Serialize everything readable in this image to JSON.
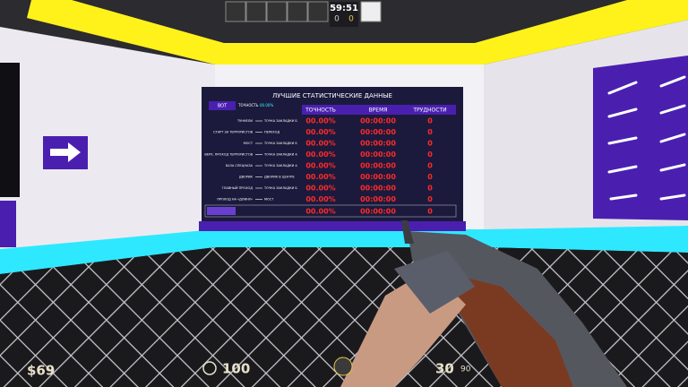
{
  "hud": {
    "timer": "59:51",
    "score_ct": "0",
    "score_t": "0",
    "money": "$69",
    "health": "100",
    "ammo": "30",
    "reserve": "90"
  },
  "board": {
    "title": "ЛУЧШИЕ СТАТИСТИЧЕСКИЕ ДАННЫЕ",
    "mode": "BOT",
    "accuracy_label": "ТОЧНОСТЬ",
    "accuracy": "00.00%",
    "headers": [
      "ТОЧНОСТЬ",
      "ВРЕМЯ",
      "ТРУДНОСТИ"
    ],
    "rows": [
      {
        "from": "ТУННЕЛИ",
        "to": "ТОЧКА ЗАКЛАДКИ Б",
        "accuracy": "00.00%",
        "time": "00:00:00",
        "difficulty": "0"
      },
      {
        "from": "СТАРТ ЗА ТЕРРОРИСТОВ",
        "to": "ПЕРЕХОД",
        "accuracy": "00.00%",
        "time": "00:00:00",
        "difficulty": "0"
      },
      {
        "from": "МОСТ",
        "to": "ТОЧКА ЗАКЛАДКИ Б",
        "accuracy": "00.00%",
        "time": "00:00:00",
        "difficulty": "0"
      },
      {
        "from": "ВЕРХ. ПРОХОД ТЕРРОРИСТОВ",
        "to": "ТОЧКА ЗАКЛАДКИ А",
        "accuracy": "00.00%",
        "time": "00:00:00",
        "difficulty": "0"
      },
      {
        "from": "БАЗА СПЕЦНАЗА",
        "to": "ТОЧКА ЗАКЛАДКИ А",
        "accuracy": "00.00%",
        "time": "00:00:00",
        "difficulty": "0"
      },
      {
        "from": "ДВОРИК",
        "to": "ДВОРИК В ЦЕНТРЕ",
        "accuracy": "00.00%",
        "time": "00:00:00",
        "difficulty": "0"
      },
      {
        "from": "ГЛАВНЫЙ ПРОХОД",
        "to": "ТОЧКА ЗАКЛАДКИ Б",
        "accuracy": "00.00%",
        "time": "00:00:00",
        "difficulty": "0"
      },
      {
        "from": "ПРОХОД НА «ДЛИНУ»",
        "to": "МОСТ",
        "accuracy": "00.00%",
        "time": "00:00:00",
        "difficulty": "0"
      }
    ],
    "total": {
      "accuracy": "00.00%",
      "time": "00:00:00",
      "difficulty": "0"
    }
  }
}
